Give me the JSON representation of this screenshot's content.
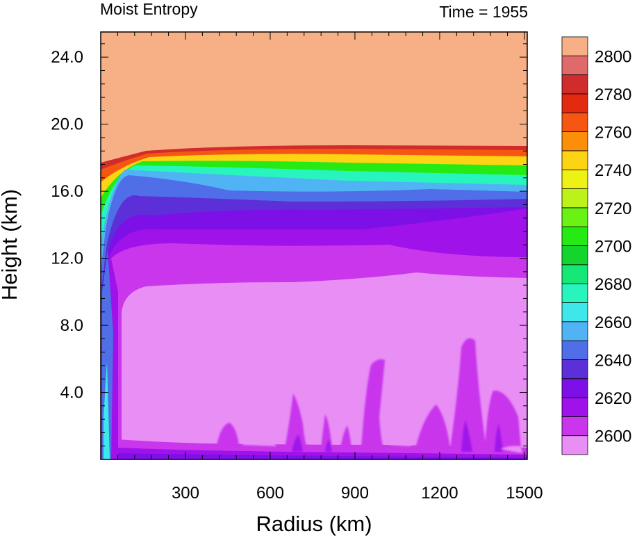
{
  "chart_data": {
    "type": "heatmap",
    "title_left": "Moist Entropy",
    "title_right": "Time = 1955",
    "xlabel": "Radius (km)",
    "ylabel": "Height (km)",
    "xlim": [
      0,
      1510
    ],
    "ylim": [
      0,
      25.5
    ],
    "x_ticks": [
      300,
      600,
      900,
      1200,
      1500
    ],
    "x_tick_labels": [
      "300",
      "600",
      "900",
      "1200",
      "1500"
    ],
    "y_ticks": [
      4,
      8,
      12,
      16,
      20,
      24
    ],
    "y_tick_labels": [
      "4.0",
      "8.0",
      "12.0",
      "16.0",
      "20.0",
      "24.0"
    ],
    "colorbar": {
      "levels": [
        2600,
        2610,
        2620,
        2630,
        2640,
        2650,
        2660,
        2670,
        2680,
        2690,
        2700,
        2710,
        2720,
        2730,
        2740,
        2750,
        2760,
        2770,
        2780,
        2790,
        2800
      ],
      "labels": [
        "2600",
        "2620",
        "2640",
        "2660",
        "2680",
        "2700",
        "2720",
        "2740",
        "2760",
        "2780",
        "2800"
      ],
      "colors": [
        "#e88ef5",
        "#c936ec",
        "#9f12ea",
        "#7d10e6",
        "#5d2fd9",
        "#4f6ee8",
        "#50b4f4",
        "#3ee8ea",
        "#27f5bd",
        "#15e876",
        "#14d42e",
        "#26ea14",
        "#6af214",
        "#bcf21a",
        "#eef214",
        "#fcd414",
        "#fc8f0a",
        "#f55712",
        "#e12a10",
        "#d02c2c",
        "#e06a6a",
        "#f7b085"
      ]
    }
  }
}
